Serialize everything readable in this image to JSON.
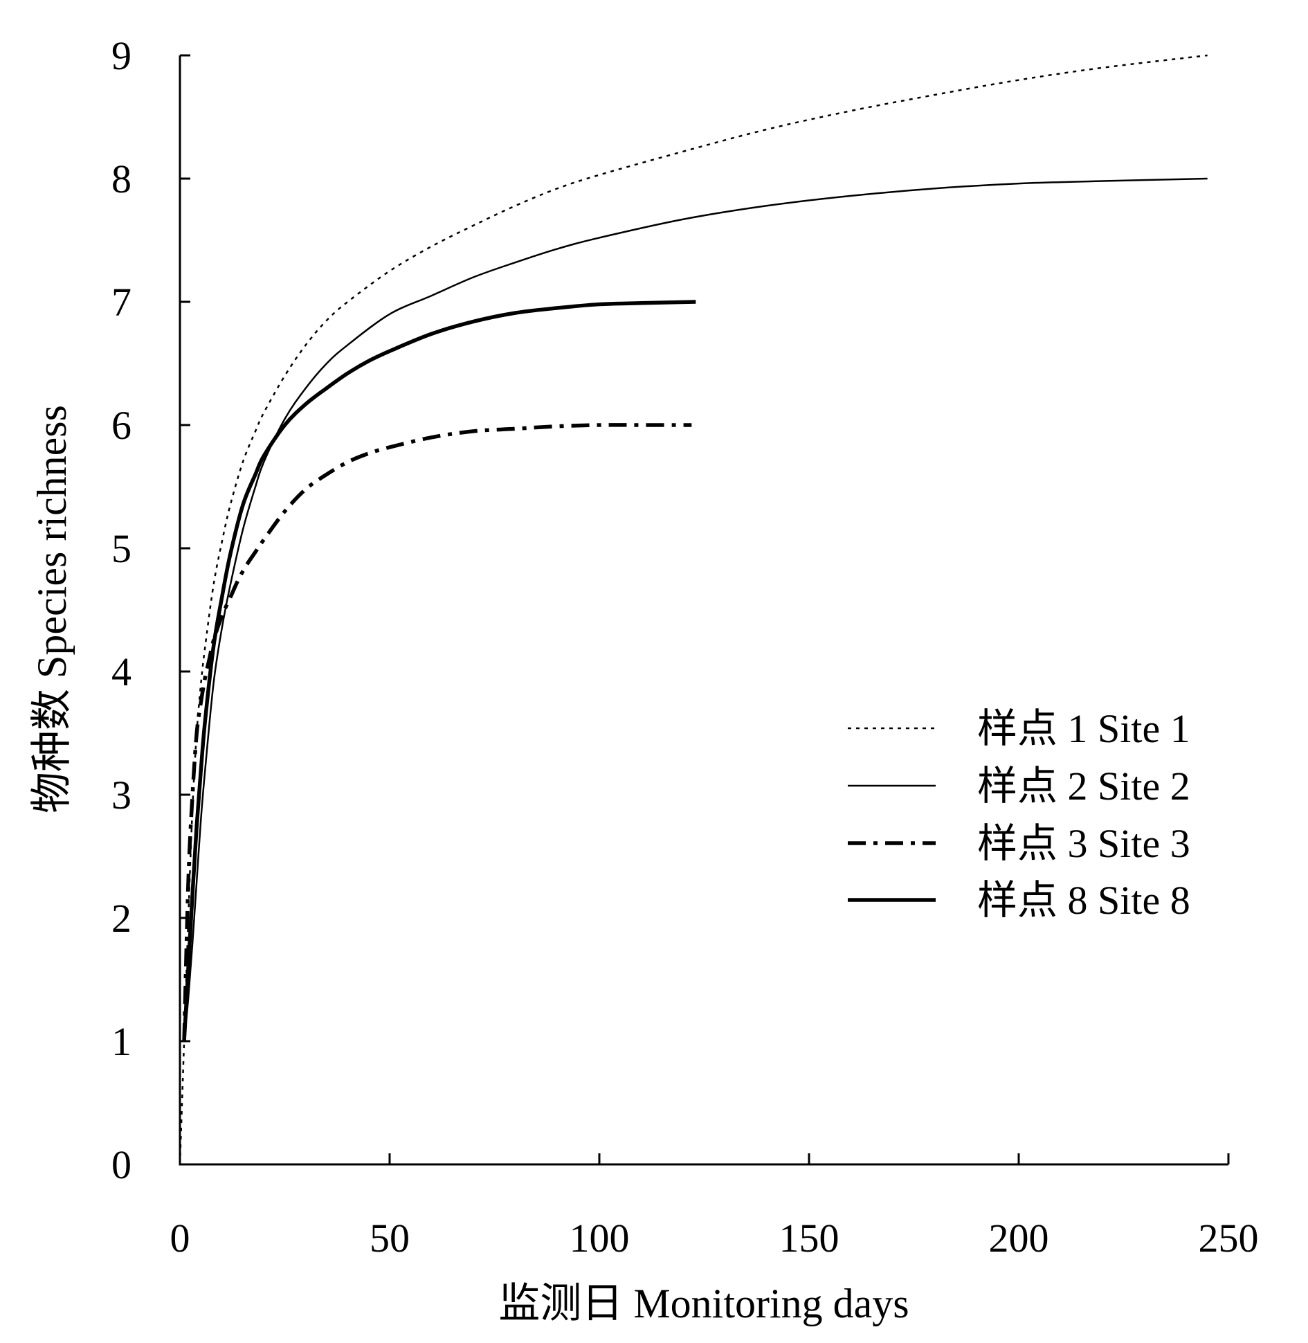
{
  "chart_data": {
    "type": "line",
    "title": "",
    "xlabel": "监测日 Monitoring days",
    "ylabel": "物种数  Species richness",
    "xlim": [
      0,
      250
    ],
    "ylim": [
      0,
      9
    ],
    "xticks": [
      0,
      50,
      100,
      150,
      200,
      250
    ],
    "yticks": [
      0,
      1,
      2,
      3,
      4,
      5,
      6,
      7,
      8,
      9
    ],
    "grid": false,
    "legend_position": "right-middle",
    "series": [
      {
        "name": "样点 1  Site 1",
        "style": "dotted",
        "x": [
          0,
          1,
          2,
          3,
          4,
          5,
          6,
          8,
          10,
          12,
          15,
          18,
          20,
          25,
          30,
          35,
          40,
          50,
          60,
          70,
          80,
          90,
          100,
          120,
          140,
          160,
          180,
          200,
          220,
          245
        ],
        "y": [
          0,
          1.0,
          2.0,
          2.9,
          3.5,
          3.9,
          4.2,
          4.7,
          5.05,
          5.35,
          5.7,
          5.95,
          6.1,
          6.4,
          6.65,
          6.85,
          7.0,
          7.25,
          7.45,
          7.62,
          7.78,
          7.92,
          8.03,
          8.22,
          8.4,
          8.55,
          8.68,
          8.8,
          8.9,
          9.0
        ]
      },
      {
        "name": "样点 2  Site 2",
        "style": "solid-thin",
        "x": [
          1,
          2,
          3,
          4,
          5,
          6,
          8,
          10,
          12,
          15,
          18,
          20,
          25,
          30,
          35,
          40,
          50,
          60,
          70,
          80,
          90,
          100,
          120,
          140,
          160,
          180,
          200,
          220,
          245
        ],
        "y": [
          1.0,
          1.35,
          1.8,
          2.3,
          2.8,
          3.2,
          3.9,
          4.35,
          4.7,
          5.15,
          5.5,
          5.7,
          6.05,
          6.3,
          6.5,
          6.65,
          6.9,
          7.05,
          7.2,
          7.32,
          7.43,
          7.52,
          7.67,
          7.78,
          7.86,
          7.92,
          7.96,
          7.98,
          8.0
        ]
      },
      {
        "name": "样点 3  Site 3",
        "style": "dash-dot",
        "x": [
          1,
          2,
          3,
          4,
          5,
          6,
          7,
          8,
          10,
          12,
          14,
          16,
          18,
          20,
          25,
          30,
          35,
          40,
          45,
          50,
          60,
          70,
          80,
          90,
          100,
          110,
          122
        ],
        "y": [
          1.0,
          2.3,
          3.0,
          3.5,
          3.75,
          3.95,
          4.1,
          4.25,
          4.45,
          4.6,
          4.75,
          4.87,
          4.97,
          5.07,
          5.3,
          5.48,
          5.6,
          5.7,
          5.77,
          5.82,
          5.9,
          5.95,
          5.97,
          5.99,
          6.0,
          6.0,
          6.0
        ]
      },
      {
        "name": "样点 8  Site 8",
        "style": "solid-thick",
        "x": [
          1,
          2,
          3,
          4,
          5,
          6,
          8,
          10,
          12,
          15,
          18,
          20,
          25,
          30,
          35,
          40,
          45,
          50,
          60,
          70,
          80,
          90,
          100,
          110,
          123
        ],
        "y": [
          1.0,
          1.6,
          2.2,
          2.75,
          3.2,
          3.6,
          4.2,
          4.6,
          4.95,
          5.35,
          5.6,
          5.75,
          6.0,
          6.17,
          6.3,
          6.42,
          6.52,
          6.6,
          6.74,
          6.84,
          6.91,
          6.95,
          6.98,
          6.99,
          7.0
        ]
      }
    ]
  }
}
